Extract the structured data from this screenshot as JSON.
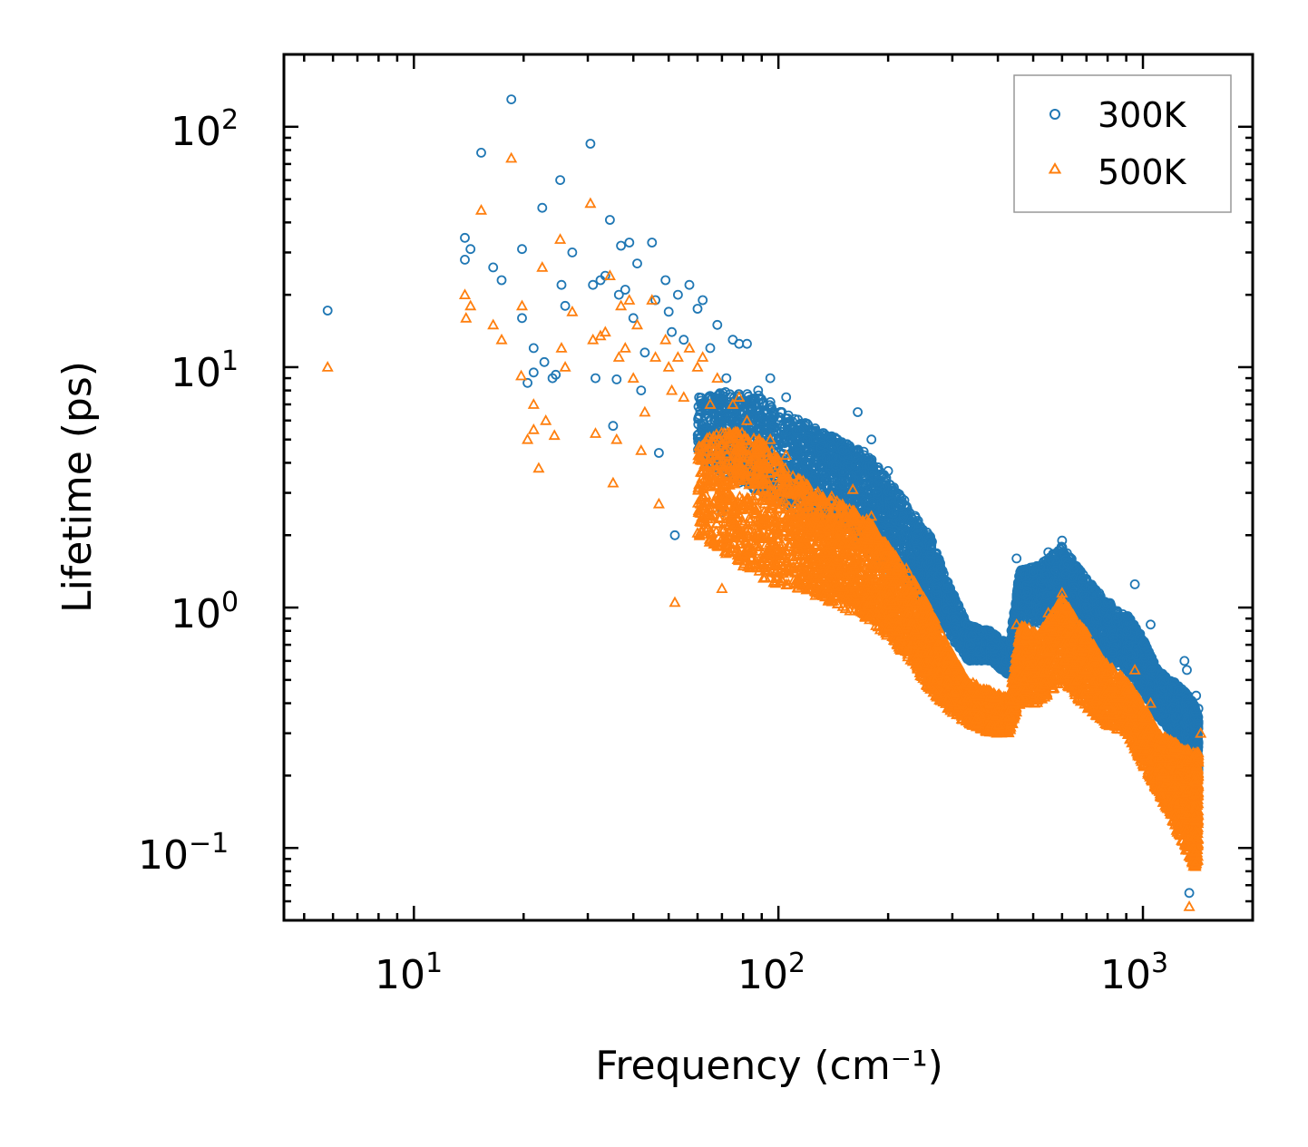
{
  "chart_data": {
    "type": "scatter",
    "title": "",
    "xlabel": "Frequency (cm⁻¹)",
    "ylabel": "Lifetime (ps)",
    "xscale": "log",
    "yscale": "log",
    "xlim": [
      4.4,
      2000
    ],
    "ylim": [
      0.05,
      200
    ],
    "x_major_ticks": [
      {
        "base": "10",
        "exp": "1"
      },
      {
        "base": "10",
        "exp": "2"
      },
      {
        "base": "10",
        "exp": "3"
      }
    ],
    "y_major_ticks": [
      {
        "base": "10",
        "exp": "−1"
      },
      {
        "base": "10",
        "exp": "0"
      },
      {
        "base": "10",
        "exp": "1"
      },
      {
        "base": "10",
        "exp": "2"
      }
    ],
    "legend": {
      "placement": "top-right"
    },
    "series": [
      {
        "name": "300K",
        "marker": "circle",
        "color": "#1f77b4",
        "points": [
          [
            5.8,
            17.2
          ],
          [
            13.8,
            34.5
          ],
          [
            13.8,
            28.0
          ],
          [
            14.3,
            31.0
          ],
          [
            15.3,
            78.0
          ],
          [
            16.5,
            26.0
          ],
          [
            17.4,
            23.0
          ],
          [
            18.5,
            130.0
          ],
          [
            19.8,
            31.0
          ],
          [
            19.8,
            16.0
          ],
          [
            20.5,
            8.6
          ],
          [
            21.3,
            12.0
          ],
          [
            21.3,
            9.5
          ],
          [
            22.5,
            46.0
          ],
          [
            22.8,
            10.5
          ],
          [
            24.0,
            9.0
          ],
          [
            24.5,
            9.3
          ],
          [
            25.2,
            60.0
          ],
          [
            25.4,
            22.0
          ],
          [
            26.0,
            18.0
          ],
          [
            27.2,
            30.0
          ],
          [
            30.5,
            85.0
          ],
          [
            31.0,
            22.0
          ],
          [
            31.5,
            9.0
          ],
          [
            32.5,
            23.0
          ],
          [
            33.5,
            24.0
          ],
          [
            34.5,
            41.0
          ],
          [
            35.2,
            5.7
          ],
          [
            36.0,
            8.9
          ],
          [
            36.5,
            20.0
          ],
          [
            37.0,
            32.0
          ],
          [
            38.0,
            21.0
          ],
          [
            39.0,
            33.0
          ],
          [
            40.0,
            16.0
          ],
          [
            41.0,
            27.0
          ],
          [
            42.0,
            8.0
          ],
          [
            43.0,
            11.5
          ],
          [
            45.0,
            33.0
          ],
          [
            46.0,
            19.0
          ],
          [
            47.0,
            4.4
          ],
          [
            49.0,
            23.0
          ],
          [
            50.0,
            17.0
          ],
          [
            51.0,
            14.0
          ],
          [
            52.0,
            2.0
          ],
          [
            53.0,
            20.0
          ],
          [
            55.0,
            13.0
          ],
          [
            57.0,
            22.0
          ],
          [
            60.0,
            17.5
          ],
          [
            62.0,
            19.0
          ],
          [
            65.0,
            12.0
          ],
          [
            68.0,
            15.0
          ],
          [
            70.0,
            2.5
          ],
          [
            72.0,
            9.0
          ],
          [
            75.0,
            13.0
          ],
          [
            78.0,
            12.5
          ],
          [
            82.0,
            12.5
          ],
          [
            88.0,
            8.0
          ],
          [
            95.0,
            9.0
          ],
          [
            105.0,
            7.5
          ],
          [
            120.0,
            5.0
          ],
          [
            135.0,
            4.2
          ],
          [
            150.0,
            4.5
          ],
          [
            165.0,
            6.5
          ],
          [
            180.0,
            5.0
          ],
          [
            200.0,
            3.7
          ],
          [
            220.0,
            2.4
          ],
          [
            240.0,
            2.0
          ],
          [
            260.0,
            1.8
          ],
          [
            290.0,
            1.2
          ],
          [
            330.0,
            0.85
          ],
          [
            380.0,
            0.8
          ],
          [
            420.0,
            0.6
          ],
          [
            450.0,
            1.6
          ],
          [
            500.0,
            1.4
          ],
          [
            550.0,
            1.7
          ],
          [
            600.0,
            1.9
          ],
          [
            650.0,
            1.5
          ],
          [
            700.0,
            1.0
          ],
          [
            800.0,
            0.9
          ],
          [
            950.0,
            1.25
          ],
          [
            1000.0,
            0.7
          ],
          [
            1050.0,
            0.85
          ],
          [
            1150.0,
            0.5
          ],
          [
            1250.0,
            0.45
          ],
          [
            1300.0,
            0.6
          ],
          [
            1320.0,
            0.55
          ],
          [
            1340.0,
            0.065
          ],
          [
            1400.0,
            0.43
          ],
          [
            1420.0,
            0.38
          ]
        ],
        "band": [
          [
            60,
            4.2,
            7.5
          ],
          [
            75,
            3.4,
            8.0
          ],
          [
            90,
            3.0,
            7.6
          ],
          [
            110,
            2.6,
            6.2
          ],
          [
            130,
            2.2,
            5.5
          ],
          [
            150,
            2.1,
            4.9
          ],
          [
            175,
            1.8,
            4.4
          ],
          [
            200,
            1.4,
            3.4
          ],
          [
            230,
            1.1,
            2.6
          ],
          [
            260,
            0.9,
            2.0
          ],
          [
            290,
            0.8,
            1.3
          ],
          [
            330,
            0.6,
            0.85
          ],
          [
            380,
            0.6,
            0.8
          ],
          [
            430,
            0.52,
            0.7
          ],
          [
            460,
            0.9,
            1.45
          ],
          [
            520,
            0.85,
            1.5
          ],
          [
            600,
            1.0,
            1.8
          ],
          [
            680,
            0.75,
            1.4
          ],
          [
            780,
            0.6,
            1.1
          ],
          [
            900,
            0.55,
            0.95
          ],
          [
            1000,
            0.45,
            0.75
          ],
          [
            1100,
            0.35,
            0.55
          ],
          [
            1200,
            0.3,
            0.5
          ],
          [
            1300,
            0.25,
            0.45
          ],
          [
            1380,
            0.25,
            0.4
          ],
          [
            1420,
            0.2,
            0.35
          ]
        ]
      },
      {
        "name": "500K",
        "marker": "triangle",
        "color": "#ff7f0e",
        "points": [
          [
            5.8,
            10.0
          ],
          [
            13.8,
            20.0
          ],
          [
            13.9,
            16.0
          ],
          [
            14.3,
            18.0
          ],
          [
            15.3,
            45.0
          ],
          [
            16.5,
            15.0
          ],
          [
            17.4,
            13.0
          ],
          [
            18.5,
            74.0
          ],
          [
            19.8,
            18.0
          ],
          [
            19.7,
            9.2
          ],
          [
            20.5,
            5.0
          ],
          [
            21.3,
            7.0
          ],
          [
            21.3,
            5.5
          ],
          [
            22.0,
            3.8
          ],
          [
            22.5,
            26.0
          ],
          [
            23.0,
            6.0
          ],
          [
            24.3,
            5.2
          ],
          [
            25.2,
            34.0
          ],
          [
            25.4,
            12.0
          ],
          [
            26.0,
            10.0
          ],
          [
            27.2,
            17.0
          ],
          [
            30.5,
            48.0
          ],
          [
            31.0,
            13.0
          ],
          [
            31.5,
            5.3
          ],
          [
            32.5,
            13.5
          ],
          [
            33.5,
            14.0
          ],
          [
            34.5,
            24.0
          ],
          [
            35.2,
            3.3
          ],
          [
            36.0,
            5.0
          ],
          [
            36.5,
            11.0
          ],
          [
            37.0,
            18.0
          ],
          [
            38.0,
            12.0
          ],
          [
            39.0,
            19.0
          ],
          [
            40.0,
            9.0
          ],
          [
            41.0,
            15.0
          ],
          [
            42.0,
            4.5
          ],
          [
            43.0,
            6.5
          ],
          [
            45.0,
            19.0
          ],
          [
            46.0,
            11.0
          ],
          [
            47.0,
            2.7
          ],
          [
            49.0,
            13.0
          ],
          [
            50.0,
            10.0
          ],
          [
            51.0,
            8.0
          ],
          [
            52.0,
            1.05
          ],
          [
            53.0,
            11.0
          ],
          [
            55.0,
            7.5
          ],
          [
            57.0,
            12.0
          ],
          [
            60.0,
            10.0
          ],
          [
            62.0,
            11.0
          ],
          [
            65.0,
            7.0
          ],
          [
            68.0,
            9.0
          ],
          [
            70.0,
            1.2
          ],
          [
            72.0,
            5.0
          ],
          [
            75.0,
            7.0
          ],
          [
            78.0,
            7.5
          ],
          [
            82.0,
            6.0
          ],
          [
            88.0,
            4.5
          ],
          [
            95.0,
            5.0
          ],
          [
            105.0,
            4.3
          ],
          [
            120.0,
            3.2
          ],
          [
            140.0,
            2.9
          ],
          [
            160.0,
            3.1
          ],
          [
            180.0,
            2.4
          ],
          [
            200.0,
            1.8
          ],
          [
            220.0,
            1.4
          ],
          [
            240.0,
            1.2
          ],
          [
            260.0,
            0.75
          ],
          [
            290.0,
            0.55
          ],
          [
            330.0,
            0.42
          ],
          [
            380.0,
            0.45
          ],
          [
            420.0,
            0.35
          ],
          [
            450.0,
            0.85
          ],
          [
            500.0,
            0.75
          ],
          [
            550.0,
            0.95
          ],
          [
            600.0,
            1.15
          ],
          [
            650.0,
            0.9
          ],
          [
            700.0,
            0.55
          ],
          [
            800.0,
            0.4
          ],
          [
            950.0,
            0.55
          ],
          [
            1050.0,
            0.4
          ],
          [
            1150.0,
            0.25
          ],
          [
            1250.0,
            0.2
          ],
          [
            1340.0,
            0.057
          ],
          [
            1400.0,
            0.22
          ],
          [
            1440.0,
            0.3
          ]
        ],
        "band": [
          [
            60,
            2.0,
            5.0
          ],
          [
            75,
            1.6,
            5.5
          ],
          [
            90,
            1.3,
            5.0
          ],
          [
            110,
            1.2,
            3.6
          ],
          [
            130,
            1.1,
            3.0
          ],
          [
            150,
            1.0,
            2.7
          ],
          [
            175,
            0.9,
            2.4
          ],
          [
            200,
            0.75,
            1.8
          ],
          [
            230,
            0.6,
            1.4
          ],
          [
            260,
            0.45,
            1.0
          ],
          [
            290,
            0.38,
            0.7
          ],
          [
            330,
            0.33,
            0.5
          ],
          [
            380,
            0.3,
            0.45
          ],
          [
            430,
            0.3,
            0.42
          ],
          [
            460,
            0.4,
            0.85
          ],
          [
            520,
            0.4,
            0.8
          ],
          [
            600,
            0.5,
            1.1
          ],
          [
            680,
            0.4,
            0.85
          ],
          [
            780,
            0.33,
            0.6
          ],
          [
            900,
            0.3,
            0.5
          ],
          [
            1000,
            0.22,
            0.4
          ],
          [
            1100,
            0.17,
            0.3
          ],
          [
            1200,
            0.13,
            0.28
          ],
          [
            1300,
            0.1,
            0.26
          ],
          [
            1380,
            0.08,
            0.25
          ],
          [
            1420,
            0.09,
            0.25
          ]
        ]
      }
    ]
  }
}
